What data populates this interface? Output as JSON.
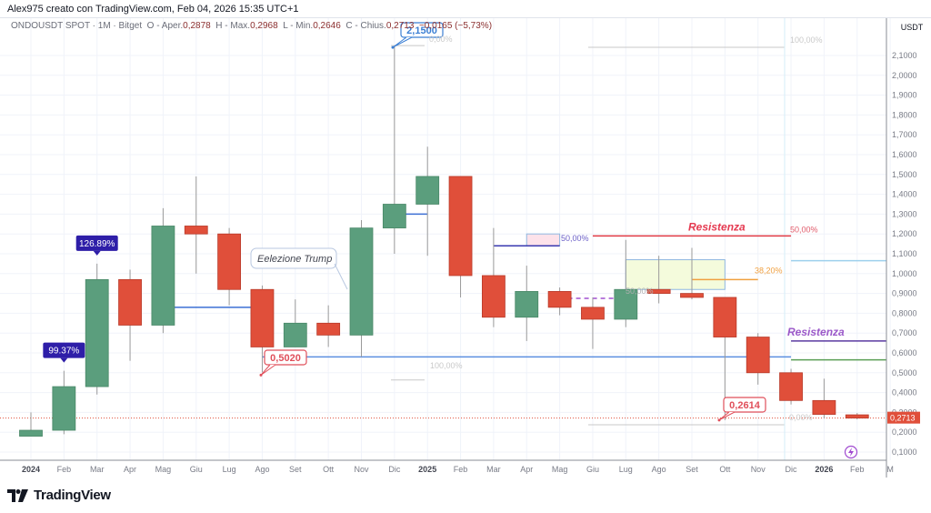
{
  "header": {
    "credit": "Alex975 creato con TradingView.com, Feb 04, 2026 15:35 UTC+1"
  },
  "symbol_line": {
    "symbol": "ONDOUSDT SPOT · 1M · Bitget",
    "open_label": "O - Aper.",
    "open": "0,2878",
    "high_label": "H - Max.",
    "high": "0,2968",
    "low_label": "L - Min.",
    "low": "0,2646",
    "close_label": "C - Chius.",
    "close": "0,2713",
    "change": "−0,0165 (−5,73%)"
  },
  "price_axis": {
    "currency": "USDT",
    "current_price_tag": "0,2713",
    "current_price_color": "#e04f3a"
  },
  "footer": {
    "logo_text": "TradingView"
  },
  "colors": {
    "up": "#5b9e7d",
    "down": "#e04f3a",
    "grid": "#f0f3fa",
    "text_muted": "#787b86"
  },
  "chart_data": {
    "type": "candlestick",
    "title": "ONDOUSDT SPOT · 1M · Bitget",
    "xlabel": "",
    "ylabel": "USDT",
    "ylim": [
      0.05,
      2.2
    ],
    "yticks": [
      "2,1000",
      "2,0000",
      "1,9000",
      "1,8000",
      "1,7000",
      "1,6000",
      "1,5000",
      "1,4000",
      "1,3000",
      "1,2000",
      "1,1000",
      "1,0000",
      "0,9000",
      "0,8000",
      "0,7000",
      "0,6000",
      "0,5000",
      "0,4000",
      "0,3000",
      "0,2000",
      "0,1000"
    ],
    "x_tick_labels": [
      "2024",
      "Feb",
      "Mar",
      "Apr",
      "Mag",
      "Giu",
      "Lug",
      "Ago",
      "Set",
      "Ott",
      "Nov",
      "Dic",
      "2025",
      "Feb",
      "Mar",
      "Apr",
      "Mag",
      "Giu",
      "Lug",
      "Ago",
      "Set",
      "Ott",
      "Nov",
      "Dic",
      "2026",
      "Feb",
      "M"
    ],
    "bold_ticks": [
      "2024",
      "2025",
      "2026"
    ],
    "grid": true,
    "candles": [
      {
        "t": "2024-01",
        "o": 0.18,
        "h": 0.3,
        "l": 0.18,
        "c": 0.21
      },
      {
        "t": "2024-02",
        "o": 0.21,
        "h": 0.51,
        "l": 0.19,
        "c": 0.43
      },
      {
        "t": "2024-03",
        "o": 0.43,
        "h": 1.05,
        "l": 0.39,
        "c": 0.97
      },
      {
        "t": "2024-04",
        "o": 0.97,
        "h": 1.02,
        "l": 0.56,
        "c": 0.74
      },
      {
        "t": "2024-05",
        "o": 0.74,
        "h": 1.33,
        "l": 0.7,
        "c": 1.24
      },
      {
        "t": "2024-06",
        "o": 1.24,
        "h": 1.49,
        "l": 1.0,
        "c": 1.2
      },
      {
        "t": "2024-07",
        "o": 1.2,
        "h": 1.23,
        "l": 0.84,
        "c": 0.92
      },
      {
        "t": "2024-08",
        "o": 0.92,
        "h": 0.94,
        "l": 0.502,
        "c": 0.63
      },
      {
        "t": "2024-09",
        "o": 0.63,
        "h": 0.87,
        "l": 0.63,
        "c": 0.75
      },
      {
        "t": "2024-10",
        "o": 0.75,
        "h": 0.84,
        "l": 0.63,
        "c": 0.69
      },
      {
        "t": "2024-11",
        "o": 0.69,
        "h": 1.27,
        "l": 0.58,
        "c": 1.23
      },
      {
        "t": "2024-12",
        "o": 1.23,
        "h": 2.15,
        "l": 1.1,
        "c": 1.35
      },
      {
        "t": "2025-01",
        "o": 1.35,
        "h": 1.64,
        "l": 1.09,
        "c": 1.49
      },
      {
        "t": "2025-02",
        "o": 1.49,
        "h": 1.49,
        "l": 0.88,
        "c": 0.99
      },
      {
        "t": "2025-03",
        "o": 0.99,
        "h": 1.23,
        "l": 0.73,
        "c": 0.78
      },
      {
        "t": "2025-04",
        "o": 0.78,
        "h": 1.04,
        "l": 0.66,
        "c": 0.91
      },
      {
        "t": "2025-05",
        "o": 0.91,
        "h": 0.93,
        "l": 0.79,
        "c": 0.83
      },
      {
        "t": "2025-06",
        "o": 0.83,
        "h": 0.88,
        "l": 0.62,
        "c": 0.77
      },
      {
        "t": "2025-07",
        "o": 0.77,
        "h": 1.17,
        "l": 0.73,
        "c": 0.92
      },
      {
        "t": "2025-08",
        "o": 0.92,
        "h": 1.09,
        "l": 0.85,
        "c": 0.9
      },
      {
        "t": "2025-09",
        "o": 0.9,
        "h": 1.13,
        "l": 0.87,
        "c": 0.88
      },
      {
        "t": "2025-10",
        "o": 0.88,
        "h": 0.88,
        "l": 0.2614,
        "c": 0.68
      },
      {
        "t": "2025-11",
        "o": 0.68,
        "h": 0.7,
        "l": 0.44,
        "c": 0.5
      },
      {
        "t": "2025-12",
        "o": 0.5,
        "h": 0.52,
        "l": 0.34,
        "c": 0.36
      },
      {
        "t": "2026-01",
        "o": 0.36,
        "h": 0.47,
        "l": 0.27,
        "c": 0.29
      },
      {
        "t": "2026-02",
        "o": 0.2878,
        "h": 0.2968,
        "l": 0.2646,
        "c": 0.2713
      }
    ],
    "annotations": [
      {
        "type": "badge",
        "text": "99.37%",
        "at": "2024-02",
        "price": 0.51,
        "color": "#2e1ea8"
      },
      {
        "type": "badge",
        "text": "126.89%",
        "at": "2024-03",
        "price": 1.05,
        "color": "#2e1ea8"
      },
      {
        "type": "callout",
        "text": "Eelezione Trump",
        "at": "2024-11"
      },
      {
        "type": "price_note",
        "text": "0,5020",
        "price": 0.502,
        "color": "#e04f5a"
      },
      {
        "type": "price_note",
        "text": "2,1500",
        "price": 2.15,
        "color": "#3b7fd4"
      },
      {
        "type": "price_note",
        "text": "0,2614",
        "price": 0.2614,
        "color": "#e04f5a"
      },
      {
        "type": "label",
        "text": "Resistenza",
        "price": 1.19,
        "color": "#e53950"
      },
      {
        "type": "label",
        "text": "Resistenza",
        "price": 0.66,
        "color": "#9b59c9"
      },
      {
        "type": "fib_label",
        "text": "50,00%",
        "price": 1.19,
        "color": "#e05a6a"
      },
      {
        "type": "fib_label",
        "text": "38,20%",
        "price": 0.97,
        "color": "#f0a040"
      },
      {
        "type": "fib_label",
        "text": "50,00%",
        "price": 1.15,
        "color": "#6b5fc7"
      },
      {
        "type": "fib_label",
        "text": "50,00%",
        "price": 0.92,
        "color": "#b0b0b0"
      },
      {
        "type": "fib_label",
        "text": "100,00%",
        "price": 2.15,
        "color": "#c9c9c9"
      },
      {
        "type": "fib_label",
        "text": "100,00%",
        "price": 0.5,
        "color": "#c9c9c9"
      },
      {
        "type": "fib_label",
        "text": "0,00%",
        "price": 2.15,
        "color": "#c9c9c9"
      },
      {
        "type": "fib_label",
        "text": "0,00%",
        "price": 0.26,
        "color": "#c9c9c9"
      }
    ],
    "horizontal_lines": [
      {
        "price": 0.83,
        "color": "#3b6fd4",
        "from": "2024-05",
        "to": "2024-08"
      },
      {
        "price": 0.58,
        "color": "#5b8fe0",
        "from": "2024-08",
        "to": "2025-12"
      },
      {
        "price": 1.3,
        "color": "#3b6fd4",
        "from": "2024-12",
        "to": "2025-01"
      },
      {
        "price": 1.14,
        "color": "#3a3ab0",
        "from": "2025-03",
        "to": "2025-05"
      },
      {
        "price": 0.875,
        "color": "#a050d0",
        "from": "2025-05",
        "to": "2025-07",
        "dashed": true
      },
      {
        "price": 1.19,
        "color": "#e03a45",
        "from": "2025-06",
        "to": "2025-12"
      },
      {
        "price": 0.97,
        "color": "#f0a040",
        "from": "2025-09",
        "to": "2025-11"
      },
      {
        "price": 0.66,
        "color": "#5a3aa0",
        "from": "2025-12",
        "to": "right"
      },
      {
        "price": 0.565,
        "color": "#5a9e55",
        "from": "2025-12",
        "to": "right"
      },
      {
        "price": 1.065,
        "color": "#9dd0ec",
        "from": "2025-12",
        "to": "right"
      },
      {
        "price": 0.2713,
        "color": "#e04f3a",
        "from": "left",
        "to": "right",
        "dotted": true
      }
    ],
    "highlight_boxes": [
      {
        "from": "2025-04",
        "to": "2025-05",
        "top": 1.2,
        "bottom": 1.14,
        "color": "#fde2ea"
      },
      {
        "from": "2025-07",
        "to": "2025-10",
        "top": 1.07,
        "bottom": 0.92,
        "color": "#f4fbdc"
      }
    ]
  }
}
